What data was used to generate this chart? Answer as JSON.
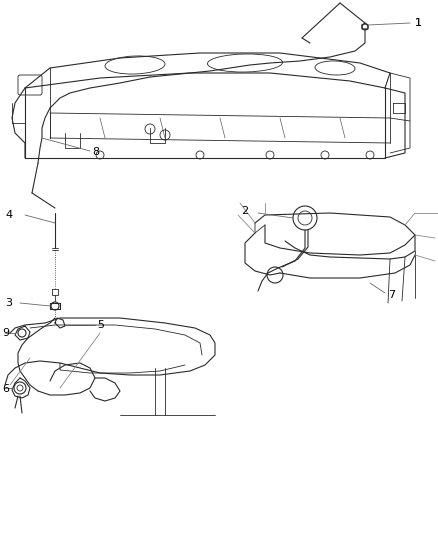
{
  "background_color": "#ffffff",
  "line_color": "#2a2a2a",
  "label_color": "#000000",
  "figsize": [
    4.38,
    5.33
  ],
  "dpi": 100
}
